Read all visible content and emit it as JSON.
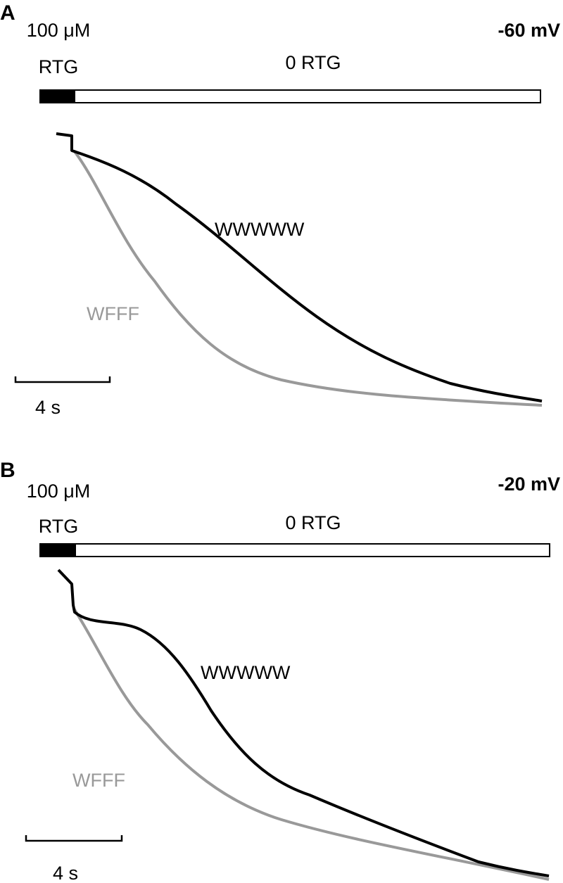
{
  "panels": [
    {
      "letter": "A",
      "drug_label": [
        "100 μM",
        "RTG"
      ],
      "wash_label": "0 RTG",
      "voltage": "-60 mV",
      "trace_labels": [
        "WWWWW",
        "WFFF"
      ],
      "scale_bar": "4 s"
    },
    {
      "letter": "B",
      "drug_label": [
        "100 μM",
        "RTG"
      ],
      "wash_label": "0 RTG",
      "voltage": "-20 mV",
      "trace_labels": [
        "WWWWW",
        "WFFF"
      ],
      "scale_bar": "4 s"
    }
  ]
}
